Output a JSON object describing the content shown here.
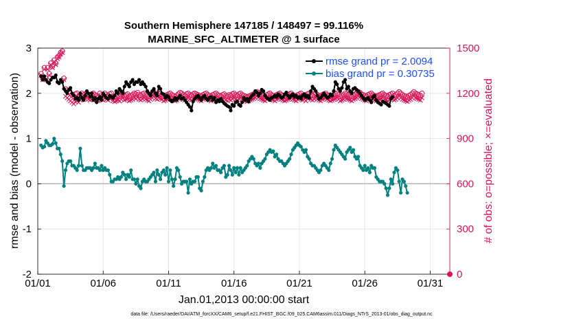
{
  "chart_data": {
    "type": "line",
    "title_line1": "Southern Hemisphere 147185 / 148497 = 99.116%",
    "title_line2": "MARINE_SFC_ALTIMETER @ 1 surface",
    "xlabel": "Jan.01,2013 00:00:00 start",
    "ylabel_left": "rmse and bias (model - observation)",
    "ylabel_right": "# of obs: o=possible; ×=evaluated",
    "footnote": "data file: /Users/raeder/DAI/ATM_forcXX/CAM6_setup/f.e21.FHIST_BGC.f09_025.CAM6assim.011/Diags_NTrS_2013-01/obs_diag_output.nc",
    "xlim": [
      1,
      32.5
    ],
    "ylim_left": [
      -2,
      3
    ],
    "ylim_right": [
      0,
      1500
    ],
    "x_tick_labels": [
      "01/01",
      "01/06",
      "01/11",
      "01/16",
      "01/21",
      "01/26",
      "01/31"
    ],
    "y_left_tick_labels": [
      "-2",
      "-1",
      "0",
      "1",
      "2",
      "3"
    ],
    "y_right_tick_labels": [
      "0",
      "300",
      "600",
      "900",
      "1200",
      "1500"
    ],
    "colors": {
      "rmse": "#000000",
      "bias": "#00807f",
      "obs": "#dc1455",
      "zero_line": "#b3b3b3",
      "legend_text": "#1f4fff"
    },
    "legend_rmse": "rmse grand pr = 2.0094",
    "legend_bias": "bias grand pr = 0.30735",
    "rmse": [
      2.38,
      2.3,
      2.38,
      2.3,
      2.25,
      2.22,
      2.3,
      2.35,
      2.35,
      2.4,
      2.25,
      2.22,
      2.3,
      2.25,
      2.1,
      2.05,
      2.0,
      2.08,
      2.12,
      2.0,
      1.95,
      1.88,
      1.9,
      1.85,
      2.0,
      1.9,
      1.85,
      1.95,
      2.05,
      2.0,
      1.92,
      2.0,
      1.85,
      1.9,
      1.8,
      1.88,
      1.92,
      1.85,
      2.0,
      1.95,
      1.9,
      1.88,
      1.95,
      1.92,
      1.9,
      1.95,
      2.05,
      2.0,
      2.1,
      2.05,
      2.0,
      2.15,
      2.25,
      2.2,
      2.15,
      2.25,
      2.3,
      2.2,
      2.25,
      2.25,
      2.3,
      2.2,
      2.25,
      2.2,
      2.15,
      2.05,
      2.0,
      1.95,
      2.05,
      2.1,
      2.0,
      1.95,
      2.15,
      2.1,
      2.0,
      1.98,
      1.9,
      1.95,
      1.92,
      1.85,
      1.82,
      1.85,
      1.9,
      1.85,
      1.9,
      1.95,
      1.88,
      1.9,
      1.85,
      1.8,
      1.75,
      1.7,
      1.62,
      1.82,
      1.88,
      1.92,
      1.95,
      1.9,
      1.85,
      1.92,
      1.95,
      1.88,
      1.85,
      1.9,
      1.92,
      1.85,
      1.9,
      1.8,
      1.85,
      1.82,
      1.88,
      1.82,
      1.78,
      1.75,
      1.72,
      1.7,
      1.62,
      1.75,
      1.72,
      1.8,
      1.82,
      1.75,
      1.72,
      1.8,
      1.9,
      1.85,
      1.88,
      1.82,
      1.9,
      1.95,
      1.98,
      2.05,
      2.02,
      1.95,
      2.0,
      2.08,
      2.05,
      1.95,
      1.9,
      1.88,
      1.85,
      1.9,
      1.92,
      1.95,
      1.92,
      1.98,
      1.95,
      1.9,
      1.92,
      1.98,
      2.02,
      1.95,
      1.9,
      1.95,
      1.98,
      1.92,
      1.95,
      1.9,
      1.92,
      1.88,
      1.95,
      1.98,
      1.92,
      1.95,
      1.9,
      2.05,
      2.15,
      2.1,
      2.05,
      1.95,
      1.88,
      1.9,
      1.95,
      2.0,
      1.95,
      1.9,
      1.92,
      1.98,
      1.95,
      2.05,
      2.25,
      2.2,
      2.1,
      2.05,
      2.12,
      2.25,
      2.3,
      2.1,
      2.15,
      2.05,
      2.0,
      2.1,
      2.12,
      2.08,
      2.05,
      2.0,
      1.95,
      1.9,
      1.85,
      1.88,
      1.9,
      1.85,
      1.8,
      1.92,
      1.95,
      1.85,
      1.8,
      1.78,
      1.75,
      1.82,
      1.8,
      1.78,
      1.75,
      1.72,
      1.88,
      1.92
    ],
    "bias": [
      0.85,
      0.8,
      0.82,
      0.95,
      0.9,
      0.85,
      0.85,
      0.88,
      1.0,
      0.9,
      0.78,
      0.78,
      0.65,
      0.5,
      -0.05,
      0.3,
      0.45,
      0.5,
      0.5,
      0.4,
      0.4,
      0.35,
      0.3,
      0.4,
      0.78,
      0.4,
      0.3,
      0.3,
      0.35,
      0.35,
      0.35,
      0.3,
      0.35,
      0.45,
      0.35,
      0.35,
      0.3,
      0.4,
      0.3,
      0.35,
      0.3,
      0.3,
      0.2,
      0.05,
      0.05,
      0.1,
      0.1,
      0.15,
      0.1,
      0.15,
      0.25,
      0.2,
      0.1,
      0.2,
      0.15,
      0.3,
      0.1,
      0.1,
      0.0,
      0.1,
      -0.05,
      -0.1,
      0.05,
      0.1,
      0.05,
      0.05,
      0.1,
      0.15,
      0.2,
      0.25,
      0.05,
      0.3,
      0.2,
      0.1,
      0.25,
      0.3,
      0.2,
      0.35,
      0.05,
      0.3,
      0.1,
      -0.05,
      0.1,
      0.35,
      0.3,
      0.15,
      0.0,
      0.05,
      0.05,
      0.05,
      -0.2,
      0.1,
      0.0,
      0.05,
      0.05,
      0.15,
      0.15,
      -0.1,
      -0.15,
      0.05,
      0.15,
      0.3,
      0.35,
      0.3,
      0.35,
      0.45,
      0.35,
      0.4,
      0.3,
      0.3,
      0.25,
      0.35,
      0.4,
      0.15,
      0.2,
      0.4,
      0.3,
      0.2,
      0.35,
      0.25,
      0.35,
      0.2,
      0.35,
      0.25,
      0.3,
      0.35,
      0.4,
      0.5,
      0.55,
      0.6,
      0.55,
      0.45,
      0.4,
      0.45,
      0.35,
      0.45,
      0.5,
      0.55,
      0.65,
      0.7,
      0.75,
      0.7,
      0.72,
      0.6,
      0.65,
      0.55,
      0.5,
      0.5,
      0.45,
      0.4,
      0.45,
      0.5,
      0.55,
      0.65,
      0.75,
      0.8,
      0.85,
      0.9,
      0.85,
      0.82,
      0.75,
      0.7,
      0.75,
      0.6,
      0.55,
      0.45,
      0.4,
      0.4,
      0.35,
      0.3,
      0.25,
      0.3,
      0.4,
      0.45,
      0.4,
      0.35,
      0.3,
      0.45,
      0.55,
      0.75,
      0.85,
      0.8,
      0.75,
      0.7,
      0.65,
      0.6,
      0.55,
      0.7,
      0.75,
      0.8,
      0.7,
      0.75,
      0.6,
      0.55,
      0.6,
      0.4,
      0.35,
      0.3,
      0.4,
      0.3,
      0.35,
      0.25,
      0.4,
      0.35,
      0.35,
      0.15,
      0.1,
      0.05,
      0.05,
      0.05,
      0.0,
      -0.1,
      -0.25,
      -0.1,
      0.1,
      0.0,
      0.25,
      0.35,
      0.3,
      0.05,
      -0.2,
      0.1,
      0.05,
      -0.05,
      -0.2
    ],
    "obs_possible": [
      1330,
      1300,
      1370,
      1300,
      1370,
      1330,
      1400,
      1380,
      1420,
      1400,
      1440,
      1450,
      1470,
      1480,
      1300,
      1230,
      1220,
      1210,
      1200,
      1190,
      1180,
      1195,
      1200,
      1180,
      1185,
      1200,
      1190,
      1195,
      1200,
      1190,
      1185,
      1195,
      1200,
      1190,
      1185,
      1180,
      1200,
      1190,
      1185,
      1200,
      1190,
      1185,
      1195,
      1200,
      1180,
      1175,
      1180,
      1185,
      1180,
      1190,
      1200,
      1185,
      1190,
      1195,
      1180,
      1185,
      1190,
      1200,
      1195,
      1205,
      1190,
      1185,
      1195,
      1200,
      1190,
      1185,
      1180,
      1190,
      1200,
      1210,
      1195,
      1190,
      1200,
      1195,
      1190,
      1180,
      1185,
      1190,
      1195,
      1200,
      1190,
      1185,
      1180,
      1185,
      1195,
      1205,
      1200,
      1190,
      1185,
      1195,
      1200,
      1190,
      1185,
      1195,
      1200,
      1195,
      1190,
      1185,
      1180,
      1190,
      1195,
      1200,
      1190,
      1185,
      1180,
      1190,
      1195,
      1200,
      1190,
      1185,
      1180,
      1190,
      1195,
      1185,
      1180,
      1190,
      1185,
      1195,
      1200,
      1190,
      1185,
      1195,
      1200,
      1190,
      1185,
      1180,
      1175,
      1180,
      1185,
      1190,
      1195,
      1200,
      1210,
      1205,
      1195,
      1190,
      1185,
      1180,
      1190,
      1195,
      1200,
      1190,
      1185,
      1180,
      1190,
      1195,
      1200,
      1190,
      1185,
      1180,
      1185,
      1190,
      1195,
      1200,
      1190,
      1185,
      1180,
      1190,
      1195,
      1200,
      1185,
      1190,
      1180,
      1195,
      1200,
      1190,
      1185,
      1195,
      1200,
      1190,
      1185,
      1180,
      1190,
      1195,
      1200,
      1190,
      1185,
      1180,
      1185,
      1190,
      1195,
      1200,
      1190,
      1180,
      1185,
      1190,
      1200,
      1195,
      1190,
      1185,
      1180,
      1190,
      1195,
      1200,
      1210,
      1205,
      1195,
      1190,
      1185,
      1180,
      1190,
      1195,
      1200,
      1190,
      1185,
      1180,
      1185,
      1190,
      1195,
      1200,
      1190,
      1185,
      1180,
      1190,
      1195,
      1200,
      1185,
      1190,
      1200,
      1210,
      1200,
      1190,
      1185,
      1180,
      1175,
      1185,
      1190,
      1200,
      1210,
      1200,
      1195,
      1190,
      1185,
      1200
    ],
    "obs_evaluated": [
      1320,
      1290,
      1360,
      1290,
      1360,
      1320,
      1390,
      1370,
      1410,
      1390,
      1430,
      1440,
      1460,
      1470,
      1290,
      1180,
      1170,
      1160,
      1150,
      1140,
      1130,
      1145,
      1150,
      1140,
      1155,
      1170,
      1160,
      1165,
      1170,
      1160,
      1155,
      1165,
      1170,
      1160,
      1155,
      1150,
      1170,
      1160,
      1155,
      1170,
      1160,
      1155,
      1165,
      1170,
      1150,
      1145,
      1150,
      1155,
      1150,
      1160,
      1170,
      1155,
      1160,
      1165,
      1150,
      1155,
      1160,
      1170,
      1165,
      1175,
      1160,
      1155,
      1165,
      1170,
      1160,
      1155,
      1150,
      1160,
      1170,
      1180,
      1165,
      1160,
      1170,
      1165,
      1160,
      1150,
      1155,
      1160,
      1165,
      1170,
      1160,
      1155,
      1150,
      1155,
      1165,
      1175,
      1170,
      1160,
      1155,
      1165,
      1170,
      1160,
      1155,
      1165,
      1170,
      1165,
      1160,
      1155,
      1150,
      1160,
      1165,
      1170,
      1160,
      1155,
      1150,
      1160,
      1165,
      1170,
      1160,
      1155,
      1150,
      1160,
      1165,
      1155,
      1150,
      1160,
      1155,
      1165,
      1170,
      1160,
      1155,
      1165,
      1170,
      1160,
      1155,
      1150,
      1145,
      1150,
      1155,
      1160,
      1165,
      1170,
      1180,
      1175,
      1165,
      1160,
      1155,
      1150,
      1160,
      1165,
      1170,
      1160,
      1155,
      1150,
      1160,
      1165,
      1170,
      1160,
      1155,
      1150,
      1155,
      1160,
      1165,
      1170,
      1160,
      1155,
      1150,
      1160,
      1165,
      1170,
      1155,
      1160,
      1150,
      1165,
      1170,
      1160,
      1155,
      1165,
      1170,
      1160,
      1155,
      1150,
      1160,
      1165,
      1170,
      1160,
      1155,
      1150,
      1155,
      1160,
      1165,
      1170,
      1160,
      1150,
      1155,
      1160,
      1170,
      1165,
      1160,
      1155,
      1150,
      1160,
      1165,
      1170,
      1180,
      1175,
      1165,
      1160,
      1155,
      1150,
      1160,
      1165,
      1170,
      1160,
      1155,
      1150,
      1155,
      1160,
      1165,
      1170,
      1160,
      1155,
      1150,
      1160,
      1165,
      1170,
      1155,
      1160,
      1170,
      1180,
      1170,
      1160,
      1155,
      1150,
      1145,
      1155,
      1160,
      1170,
      1180,
      1170,
      1165,
      1160,
      1155,
      1170
    ]
  }
}
